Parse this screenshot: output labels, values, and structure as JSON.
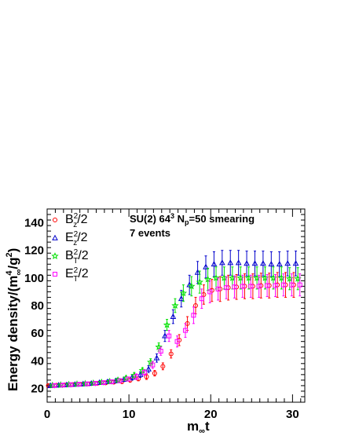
{
  "chart_data": {
    "type": "scatter",
    "title": "",
    "annotation_line1": {
      "a": "SU(2) 64",
      "a_sup": "3",
      "b": " N",
      "b_sub": "p",
      "c": "=50 smearing"
    },
    "annotation_line2": "7 events",
    "xlabel": {
      "main": "m",
      "sub": "∞",
      "tail": "t"
    },
    "ylabel": {
      "a": "Energy density/(m",
      "a_sup": "4",
      "a_sub": "∞",
      "b": "/g",
      "b_sup": "2",
      "c": ")"
    },
    "xlim": [
      0,
      31.5
    ],
    "ylim": [
      10,
      150
    ],
    "x_ticks": [
      0,
      10,
      20,
      30
    ],
    "y_ticks": [
      20,
      40,
      60,
      80,
      100,
      120,
      140
    ],
    "legend_position": "top-left",
    "series": [
      {
        "legend": {
          "base": "B",
          "sup": "2",
          "sub": "z",
          "tail": "/2"
        },
        "color": "#ff0000",
        "marker": "circle",
        "x_offset": 0,
        "points": [
          [
            0.5,
            22,
            1
          ],
          [
            1.5,
            22.3,
            1
          ],
          [
            2.5,
            22.5,
            1
          ],
          [
            3.5,
            22.8,
            1
          ],
          [
            4.5,
            23,
            1
          ],
          [
            5.5,
            23.3,
            1
          ],
          [
            6.5,
            23.7,
            1
          ],
          [
            7.5,
            24,
            1
          ],
          [
            8.5,
            24.5,
            1
          ],
          [
            9.5,
            25,
            1.5
          ],
          [
            10.5,
            26,
            1.5
          ],
          [
            11.5,
            27,
            1.5
          ],
          [
            12.5,
            28.5,
            2
          ],
          [
            13.5,
            31,
            2
          ],
          [
            14.5,
            36,
            2.5
          ],
          [
            15.5,
            45,
            3
          ],
          [
            16.5,
            55,
            4
          ],
          [
            17.5,
            67,
            5
          ],
          [
            18.5,
            80,
            6
          ],
          [
            19.5,
            88,
            7
          ],
          [
            20.5,
            91,
            8
          ],
          [
            21.5,
            92,
            9
          ],
          [
            22.5,
            93,
            9
          ],
          [
            23.5,
            93.5,
            9
          ],
          [
            24.5,
            94,
            9
          ],
          [
            25.5,
            94,
            9
          ],
          [
            26.5,
            94.5,
            9
          ],
          [
            27.5,
            94.5,
            9
          ],
          [
            28.5,
            95,
            9
          ],
          [
            29.5,
            95,
            9
          ],
          [
            30.5,
            95,
            9
          ]
        ]
      },
      {
        "legend": {
          "base": "E",
          "sup": "2",
          "sub": "z",
          "tail": "/2"
        },
        "color": "#0000cc",
        "marker": "triangle",
        "x_offset": 0.25,
        "points": [
          [
            0.5,
            22,
            1
          ],
          [
            1.5,
            22.3,
            1
          ],
          [
            2.5,
            22.6,
            1
          ],
          [
            3.5,
            22.9,
            1
          ],
          [
            4.5,
            23.2,
            1
          ],
          [
            5.5,
            23.6,
            1
          ],
          [
            6.5,
            24.2,
            1
          ],
          [
            7.5,
            24.8,
            1.2
          ],
          [
            8.5,
            25.5,
            1.5
          ],
          [
            9.5,
            26.5,
            1.5
          ],
          [
            10.5,
            28,
            2
          ],
          [
            11.5,
            30,
            2
          ],
          [
            12.5,
            34,
            2.5
          ],
          [
            13.5,
            42,
            3
          ],
          [
            14.5,
            58,
            4
          ],
          [
            15.5,
            72,
            5
          ],
          [
            16.5,
            85,
            6
          ],
          [
            17.5,
            95,
            7
          ],
          [
            18.5,
            104,
            8
          ],
          [
            19.5,
            108,
            8
          ],
          [
            20.5,
            110,
            9
          ],
          [
            21.5,
            111,
            9
          ],
          [
            22.5,
            111,
            9
          ],
          [
            23.5,
            111,
            9
          ],
          [
            24.5,
            110.5,
            9
          ],
          [
            25.5,
            110.5,
            9
          ],
          [
            26.5,
            110.5,
            9
          ],
          [
            27.5,
            110,
            9
          ],
          [
            28.5,
            110,
            9
          ],
          [
            29.5,
            110.5,
            9
          ],
          [
            30.5,
            110.5,
            9
          ]
        ]
      },
      {
        "legend": {
          "base": "B",
          "sup": "2",
          "sub": "T",
          "tail": "/2"
        },
        "color": "#00e000",
        "marker": "star",
        "x_offset": 0.5,
        "points": [
          [
            0.5,
            22.2,
            1
          ],
          [
            1.5,
            22.5,
            1
          ],
          [
            2.5,
            22.8,
            1
          ],
          [
            3.5,
            23.1,
            1
          ],
          [
            4.5,
            23.4,
            1
          ],
          [
            5.5,
            23.8,
            1
          ],
          [
            6.5,
            24.4,
            1
          ],
          [
            7.5,
            25,
            1.2
          ],
          [
            8.5,
            26,
            1.5
          ],
          [
            9.5,
            27.5,
            1.5
          ],
          [
            10.5,
            29.5,
            2
          ],
          [
            11.5,
            33,
            2
          ],
          [
            12.5,
            39,
            2.5
          ],
          [
            13.5,
            50,
            3
          ],
          [
            14.5,
            66,
            4
          ],
          [
            15.5,
            80,
            5
          ],
          [
            16.5,
            89,
            6
          ],
          [
            17.5,
            94,
            7
          ],
          [
            18.5,
            97,
            8
          ],
          [
            19.5,
            99,
            8
          ],
          [
            20.5,
            100,
            8
          ],
          [
            21.5,
            100,
            8
          ],
          [
            22.5,
            100,
            8
          ],
          [
            23.5,
            100,
            8
          ],
          [
            24.5,
            100,
            8
          ],
          [
            25.5,
            100,
            8
          ],
          [
            26.5,
            100,
            8
          ],
          [
            27.5,
            100,
            8
          ],
          [
            28.5,
            100,
            8
          ],
          [
            29.5,
            99.5,
            8
          ],
          [
            30.5,
            99.5,
            8
          ]
        ]
      },
      {
        "legend": {
          "base": "E",
          "sup": "2",
          "sub": "T",
          "tail": "/2"
        },
        "color": "#ff00ff",
        "marker": "square",
        "x_offset": 0.75,
        "points": [
          [
            0.5,
            22.1,
            1
          ],
          [
            1.5,
            22.4,
            1
          ],
          [
            2.5,
            22.7,
            1
          ],
          [
            3.5,
            23,
            1
          ],
          [
            4.5,
            23.3,
            1
          ],
          [
            5.5,
            23.7,
            1
          ],
          [
            6.5,
            24.2,
            1
          ],
          [
            7.5,
            24.8,
            1.2
          ],
          [
            8.5,
            25.6,
            1.5
          ],
          [
            9.5,
            26.8,
            1.5
          ],
          [
            10.5,
            28.5,
            2
          ],
          [
            11.5,
            31.5,
            2
          ],
          [
            12.5,
            37,
            2.5
          ],
          [
            13.5,
            47,
            3
          ],
          [
            14.5,
            58,
            4
          ],
          [
            15.5,
            54,
            4
          ],
          [
            16.5,
            62,
            5
          ],
          [
            17.5,
            73,
            6
          ],
          [
            18.5,
            85,
            7
          ],
          [
            19.5,
            90,
            8
          ],
          [
            20.5,
            92,
            8
          ],
          [
            21.5,
            93,
            8
          ],
          [
            22.5,
            93.5,
            8
          ],
          [
            23.5,
            94,
            8
          ],
          [
            24.5,
            94,
            8
          ],
          [
            25.5,
            94,
            8
          ],
          [
            26.5,
            94.5,
            8
          ],
          [
            27.5,
            94.5,
            8
          ],
          [
            28.5,
            95,
            8
          ],
          [
            29.5,
            95,
            8
          ],
          [
            30.5,
            95,
            8
          ]
        ]
      }
    ]
  }
}
